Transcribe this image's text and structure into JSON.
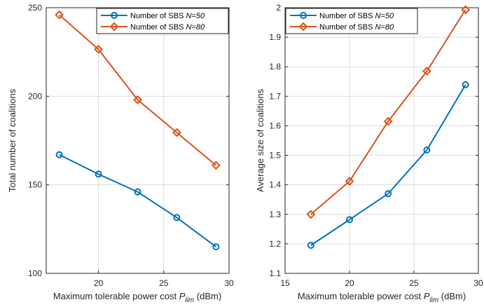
{
  "chart_data": [
    {
      "type": "line",
      "xlabel": "Maximum tolerable power cost",
      "xlabel_symbol": "P",
      "xlabel_subscript": "lim",
      "xlabel_unit": "(dBm)",
      "ylabel": "Total number of coalitions",
      "xlim": [
        16,
        30
      ],
      "ylim": [
        100,
        250
      ],
      "xticks": [
        20,
        25,
        30
      ],
      "yticks": [
        100,
        150,
        200,
        250
      ],
      "grid": true,
      "legend_position": "top-right",
      "series": [
        {
          "name": "Number of SBS N=50",
          "name_prefix": "Number of SBS ",
          "name_var": "N=50",
          "color": "#0072BD",
          "marker": "circle",
          "x": [
            17,
            20,
            23,
            26,
            29
          ],
          "y": [
            167,
            156,
            146,
            131.5,
            115
          ]
        },
        {
          "name": "Number of SBS N=80",
          "name_prefix": "Number of SBS ",
          "name_var": "N=80",
          "color": "#D95319",
          "marker": "diamond",
          "x": [
            17,
            20,
            23,
            26,
            29
          ],
          "y": [
            246,
            226.5,
            198,
            179.5,
            161
          ]
        }
      ]
    },
    {
      "type": "line",
      "xlabel": "Maximum tolerable power cost",
      "xlabel_symbol": "P",
      "xlabel_subscript": "lim",
      "xlabel_unit": "(dBm)",
      "ylabel": "Average size of coalitions",
      "xlim": [
        15,
        30
      ],
      "ylim": [
        1.1,
        2.0
      ],
      "xticks": [
        15,
        20,
        25,
        30
      ],
      "yticks": [
        1.1,
        1.2,
        1.3,
        1.4,
        1.5,
        1.6,
        1.7,
        1.8,
        1.9,
        2.0
      ],
      "ytick_labels": [
        "1.1",
        "1.2",
        "1.3",
        "1.4",
        "1.5",
        "1.6",
        "1.7",
        "1.8",
        "1.9",
        "2"
      ],
      "grid": true,
      "legend_position": "top-left",
      "series": [
        {
          "name": "Number of SBS N=50",
          "name_prefix": "Number of SBS ",
          "name_var": "N=50",
          "color": "#0072BD",
          "marker": "circle",
          "x": [
            17,
            20,
            23,
            26,
            29
          ],
          "y": [
            1.195,
            1.282,
            1.37,
            1.518,
            1.739
          ]
        },
        {
          "name": "Number of SBS N=80",
          "name_prefix": "Number of SBS ",
          "name_var": "N=80",
          "color": "#D95319",
          "marker": "diamond",
          "x": [
            17,
            20,
            23,
            26,
            29
          ],
          "y": [
            1.3,
            1.412,
            1.615,
            1.785,
            1.993
          ]
        }
      ]
    }
  ]
}
